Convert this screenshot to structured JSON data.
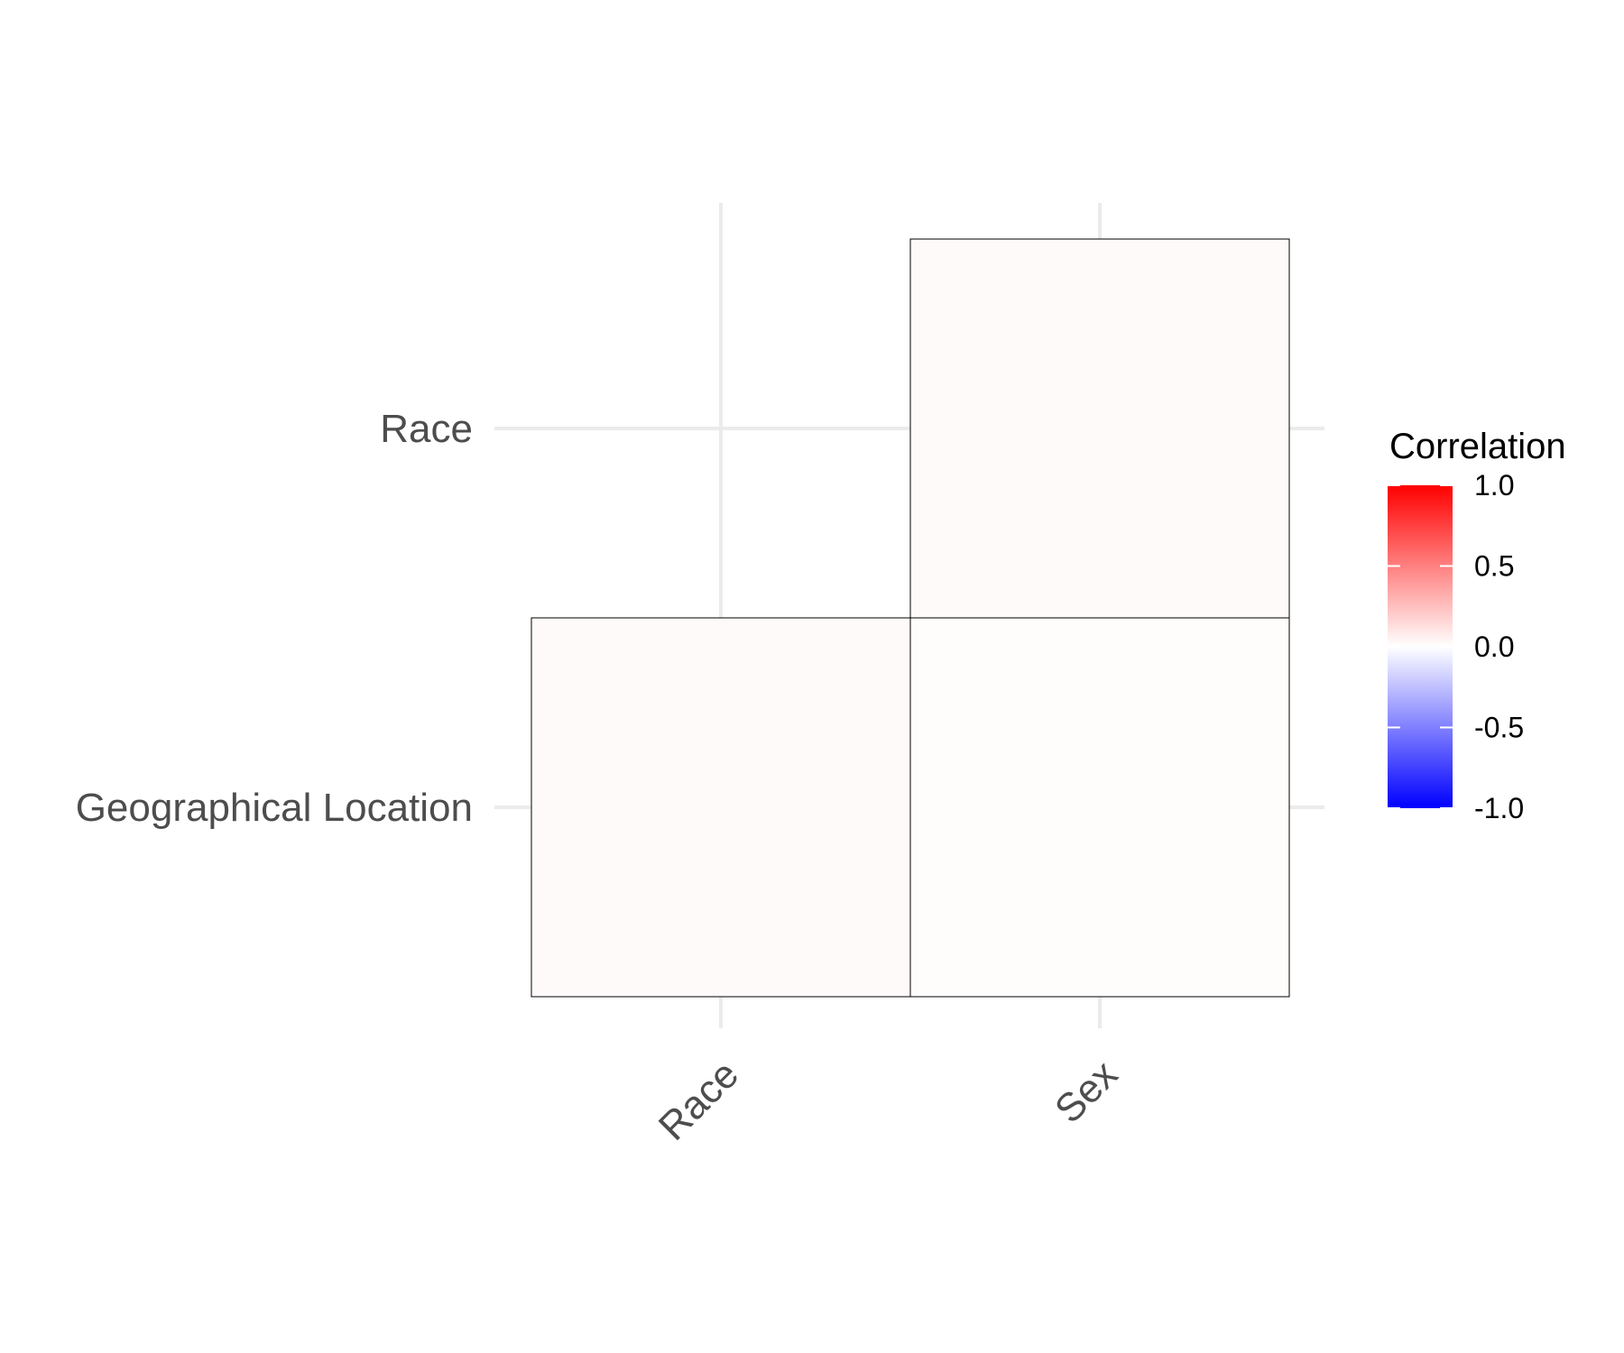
{
  "chart_data": {
    "type": "heatmap",
    "title": "",
    "xlabel": "",
    "ylabel": "",
    "x_categories": [
      "Race",
      "Sex"
    ],
    "y_categories": [
      "Geographical Location",
      "Race"
    ],
    "cells": [
      {
        "x": "Race",
        "y": "Geographical Location",
        "value": 0.02
      },
      {
        "x": "Sex",
        "y": "Geographical Location",
        "value": 0.01
      },
      {
        "x": "Sex",
        "y": "Race",
        "value": 0.02
      }
    ],
    "grid": true,
    "legend": {
      "title": "Correlation",
      "placement": "right",
      "min": -1.0,
      "max": 1.0,
      "ticks": [
        1.0,
        0.5,
        0.0,
        -0.5,
        -1.0
      ],
      "tick_labels": [
        "1.0",
        "0.5",
        "0.0",
        "-0.5",
        "-1.0"
      ],
      "colors": {
        "low": "#0000ff",
        "mid": "#ffffff",
        "high": "#ff0000"
      }
    },
    "x_label_rotation": "45-degrees"
  }
}
